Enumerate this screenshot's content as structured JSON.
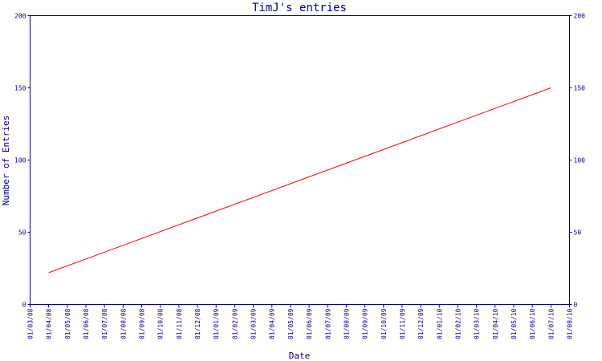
{
  "chart_data": {
    "type": "line",
    "title": "TimJ's entries",
    "xlabel": "Date",
    "ylabel": "Number of Entries",
    "ylim": [
      0,
      200
    ],
    "y_ticks": [
      0,
      50,
      100,
      150,
      200
    ],
    "x_ticks": [
      "01/03/08",
      "01/04/08",
      "01/05/08",
      "01/06/08",
      "01/07/08",
      "01/08/08",
      "01/09/08",
      "01/10/08",
      "01/11/08",
      "01/12/08",
      "01/01/09",
      "01/02/09",
      "01/03/09",
      "01/04/09",
      "01/05/09",
      "01/06/09",
      "01/07/09",
      "01/08/09",
      "01/09/09",
      "01/10/09",
      "01/11/09",
      "01/12/09",
      "01/01/10",
      "01/02/10",
      "01/03/10",
      "01/04/10",
      "01/05/10",
      "01/06/10",
      "01/07/10",
      "01/08/10"
    ],
    "grid": false,
    "right_axis": true,
    "series": [
      {
        "color": "#ff0000",
        "points": [
          {
            "x": "01/04/08",
            "y": 22
          },
          {
            "x": "01/07/10",
            "y": 150
          }
        ]
      }
    ]
  }
}
